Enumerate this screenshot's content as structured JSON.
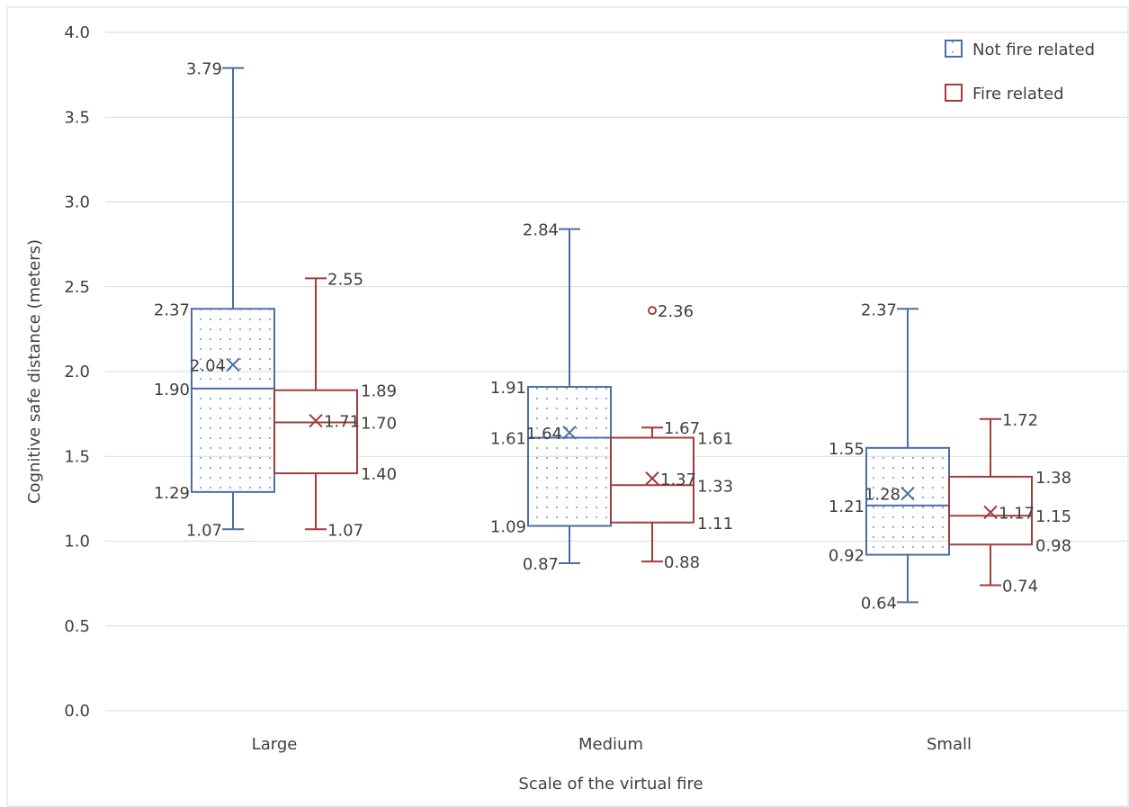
{
  "chart_data": {
    "type": "box",
    "xlabel": "Scale of the virtual fire",
    "ylabel": "Cognitive safe distance (meters)",
    "ylim": [
      0,
      4
    ],
    "yticks": [
      "0.0",
      "0.5",
      "1.0",
      "1.5",
      "2.0",
      "2.5",
      "3.0",
      "3.5",
      "4.0"
    ],
    "grid": "horizontal",
    "legend_position": "top-right",
    "categories": [
      "Large",
      "Medium",
      "Small"
    ],
    "series": [
      {
        "name": "Not fire related",
        "color": "#4a6fa5",
        "pattern": "dotted",
        "boxes": [
          {
            "min": 1.07,
            "q1": 1.29,
            "median": 1.9,
            "q3": 2.37,
            "max": 3.79,
            "mean": 2.04,
            "outliers": [],
            "labels": {
              "min": "1.07",
              "q1": "1.29",
              "median": "1.90",
              "q3": "2.37",
              "max": "3.79",
              "mean": "2.04"
            }
          },
          {
            "min": 0.87,
            "q1": 1.09,
            "median": 1.61,
            "q3": 1.91,
            "max": 2.84,
            "mean": 1.64,
            "outliers": [],
            "labels": {
              "min": "0.87",
              "q1": "1.09",
              "median": "1.61",
              "q3": "1.91",
              "max": "2.84",
              "mean": "1.64"
            }
          },
          {
            "min": 0.64,
            "q1": 0.92,
            "median": 1.21,
            "q3": 1.55,
            "max": 2.37,
            "mean": 1.28,
            "outliers": [],
            "labels": {
              "min": "0.64",
              "q1": "0.92",
              "median": "1.21",
              "q3": "1.55",
              "max": "2.37",
              "mean": "1.28"
            }
          }
        ]
      },
      {
        "name": "Fire related",
        "color": "#a33b3b",
        "pattern": "none",
        "boxes": [
          {
            "min": 1.07,
            "q1": 1.4,
            "median": 1.7,
            "q3": 1.89,
            "max": 2.55,
            "mean": 1.71,
            "outliers": [],
            "labels": {
              "min": "1.07",
              "q1": "1.40",
              "median": "1.70",
              "q3": "1.89",
              "max": "2.55",
              "mean": "1.71"
            }
          },
          {
            "min": 0.88,
            "q1": 1.11,
            "median": 1.33,
            "q3": 1.61,
            "max": 1.67,
            "mean": 1.37,
            "outliers": [
              2.36
            ],
            "labels": {
              "min": "0.88",
              "q1": "1.11",
              "median": "1.33",
              "q3": "1.61",
              "max": "1.67",
              "mean": "1.37",
              "outliers": [
                "2.36"
              ]
            }
          },
          {
            "min": 0.74,
            "q1": 0.98,
            "median": 1.15,
            "q3": 1.38,
            "max": 1.72,
            "mean": 1.17,
            "outliers": [],
            "labels": {
              "min": "0.74",
              "q1": "0.98",
              "median": "1.15",
              "q3": "1.38",
              "max": "1.72",
              "mean": "1.17"
            }
          }
        ]
      }
    ]
  }
}
